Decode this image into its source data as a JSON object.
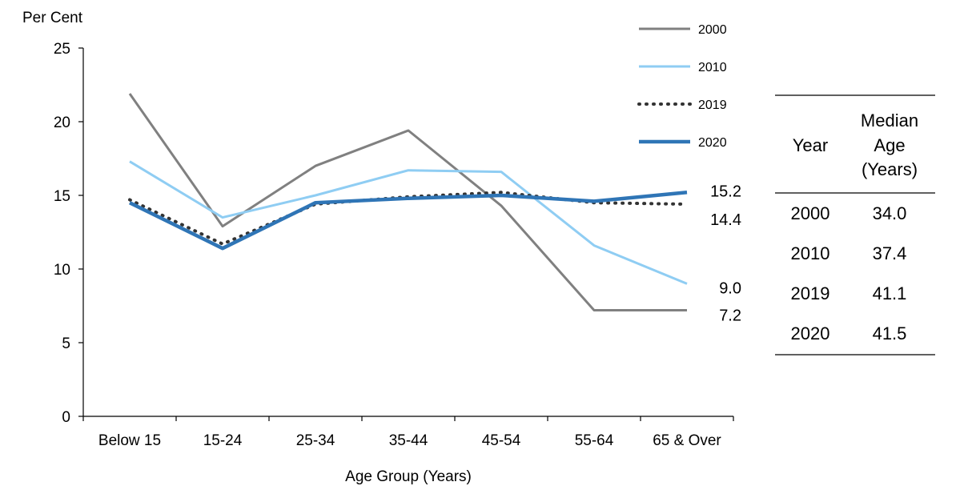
{
  "chart_data": {
    "type": "line",
    "ylabel": "Per Cent",
    "xlabel": "Age Group (Years)",
    "ylim": [
      0,
      25
    ],
    "yticks": [
      "0",
      "5",
      "10",
      "15",
      "20",
      "25"
    ],
    "categories": [
      "Below 15",
      "15-24",
      "25-34",
      "35-44",
      "45-54",
      "55-64",
      "65 & Over"
    ],
    "legend_position": "top-right",
    "grid": false,
    "series": [
      {
        "name": "2000",
        "values": [
          21.9,
          12.9,
          17.0,
          19.4,
          14.3,
          7.2,
          7.2
        ],
        "color": "#808080",
        "style": "solid",
        "end_label": "7.2"
      },
      {
        "name": "2010",
        "values": [
          17.3,
          13.5,
          15.0,
          16.7,
          16.6,
          11.6,
          9.0
        ],
        "color": "#8fcdf3",
        "style": "solid",
        "end_label": "9.0"
      },
      {
        "name": "2019",
        "values": [
          14.7,
          11.7,
          14.4,
          14.9,
          15.2,
          14.5,
          14.4
        ],
        "color": "#333333",
        "style": "dotted",
        "end_label": "14.4"
      },
      {
        "name": "2020",
        "values": [
          14.5,
          11.4,
          14.5,
          14.8,
          15.0,
          14.6,
          15.2
        ],
        "color": "#2f75b6",
        "style": "thick",
        "end_label": "15.2"
      }
    ]
  },
  "median_table": {
    "headers": {
      "year": "Year",
      "median_line1": "Median",
      "median_line2": "Age",
      "median_line3": "(Years)"
    },
    "rows": [
      {
        "year": "2000",
        "median": "34.0"
      },
      {
        "year": "2010",
        "median": "37.4"
      },
      {
        "year": "2019",
        "median": "41.1"
      },
      {
        "year": "2020",
        "median": "41.5"
      }
    ]
  }
}
